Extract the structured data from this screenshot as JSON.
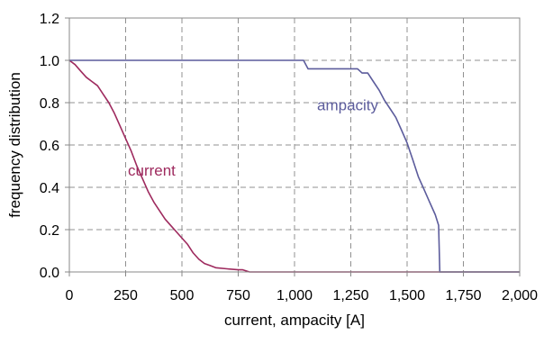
{
  "chart_data": {
    "type": "line",
    "title": "",
    "xlabel": "current, ampacity [A]",
    "ylabel": "frequency distribution",
    "xlim": [
      0,
      2000
    ],
    "ylim": [
      0,
      1.2
    ],
    "x_ticks": [
      "0",
      "250",
      "500",
      "750",
      "1,000",
      "1,250",
      "1,500",
      "1,750",
      "2,000"
    ],
    "y_ticks": [
      "0.0",
      "0.2",
      "0.4",
      "0.6",
      "0.8",
      "1.0",
      "1.2"
    ],
    "grid": true,
    "grid_style": "dashed",
    "legend": "none",
    "series": [
      {
        "name": "current",
        "color": "#9E2A5E",
        "label_at": [
          260,
          0.48
        ],
        "points": [
          [
            0,
            1.0
          ],
          [
            25,
            0.98
          ],
          [
            50,
            0.95
          ],
          [
            75,
            0.92
          ],
          [
            100,
            0.9
          ],
          [
            125,
            0.88
          ],
          [
            150,
            0.84
          ],
          [
            175,
            0.8
          ],
          [
            200,
            0.75
          ],
          [
            225,
            0.69
          ],
          [
            250,
            0.63
          ],
          [
            275,
            0.57
          ],
          [
            300,
            0.5
          ],
          [
            325,
            0.44
          ],
          [
            350,
            0.38
          ],
          [
            375,
            0.33
          ],
          [
            400,
            0.29
          ],
          [
            425,
            0.25
          ],
          [
            450,
            0.22
          ],
          [
            475,
            0.19
          ],
          [
            500,
            0.16
          ],
          [
            525,
            0.13
          ],
          [
            550,
            0.09
          ],
          [
            575,
            0.06
          ],
          [
            600,
            0.04
          ],
          [
            625,
            0.03
          ],
          [
            650,
            0.02
          ],
          [
            700,
            0.015
          ],
          [
            750,
            0.01
          ],
          [
            770,
            0.01
          ],
          [
            800,
            0.0
          ],
          [
            2000,
            0.0
          ]
        ]
      },
      {
        "name": "ampacity",
        "color": "#5C5C9C",
        "label_at": [
          1100,
          0.79
        ],
        "points": [
          [
            0,
            1.0
          ],
          [
            1040,
            1.0
          ],
          [
            1060,
            0.96
          ],
          [
            1280,
            0.96
          ],
          [
            1300,
            0.94
          ],
          [
            1325,
            0.94
          ],
          [
            1350,
            0.9
          ],
          [
            1375,
            0.86
          ],
          [
            1400,
            0.81
          ],
          [
            1425,
            0.77
          ],
          [
            1450,
            0.73
          ],
          [
            1475,
            0.67
          ],
          [
            1500,
            0.61
          ],
          [
            1525,
            0.53
          ],
          [
            1550,
            0.45
          ],
          [
            1575,
            0.39
          ],
          [
            1600,
            0.33
          ],
          [
            1625,
            0.27
          ],
          [
            1640,
            0.22
          ],
          [
            1645,
            0.0
          ],
          [
            2000,
            0.0
          ]
        ]
      }
    ]
  }
}
